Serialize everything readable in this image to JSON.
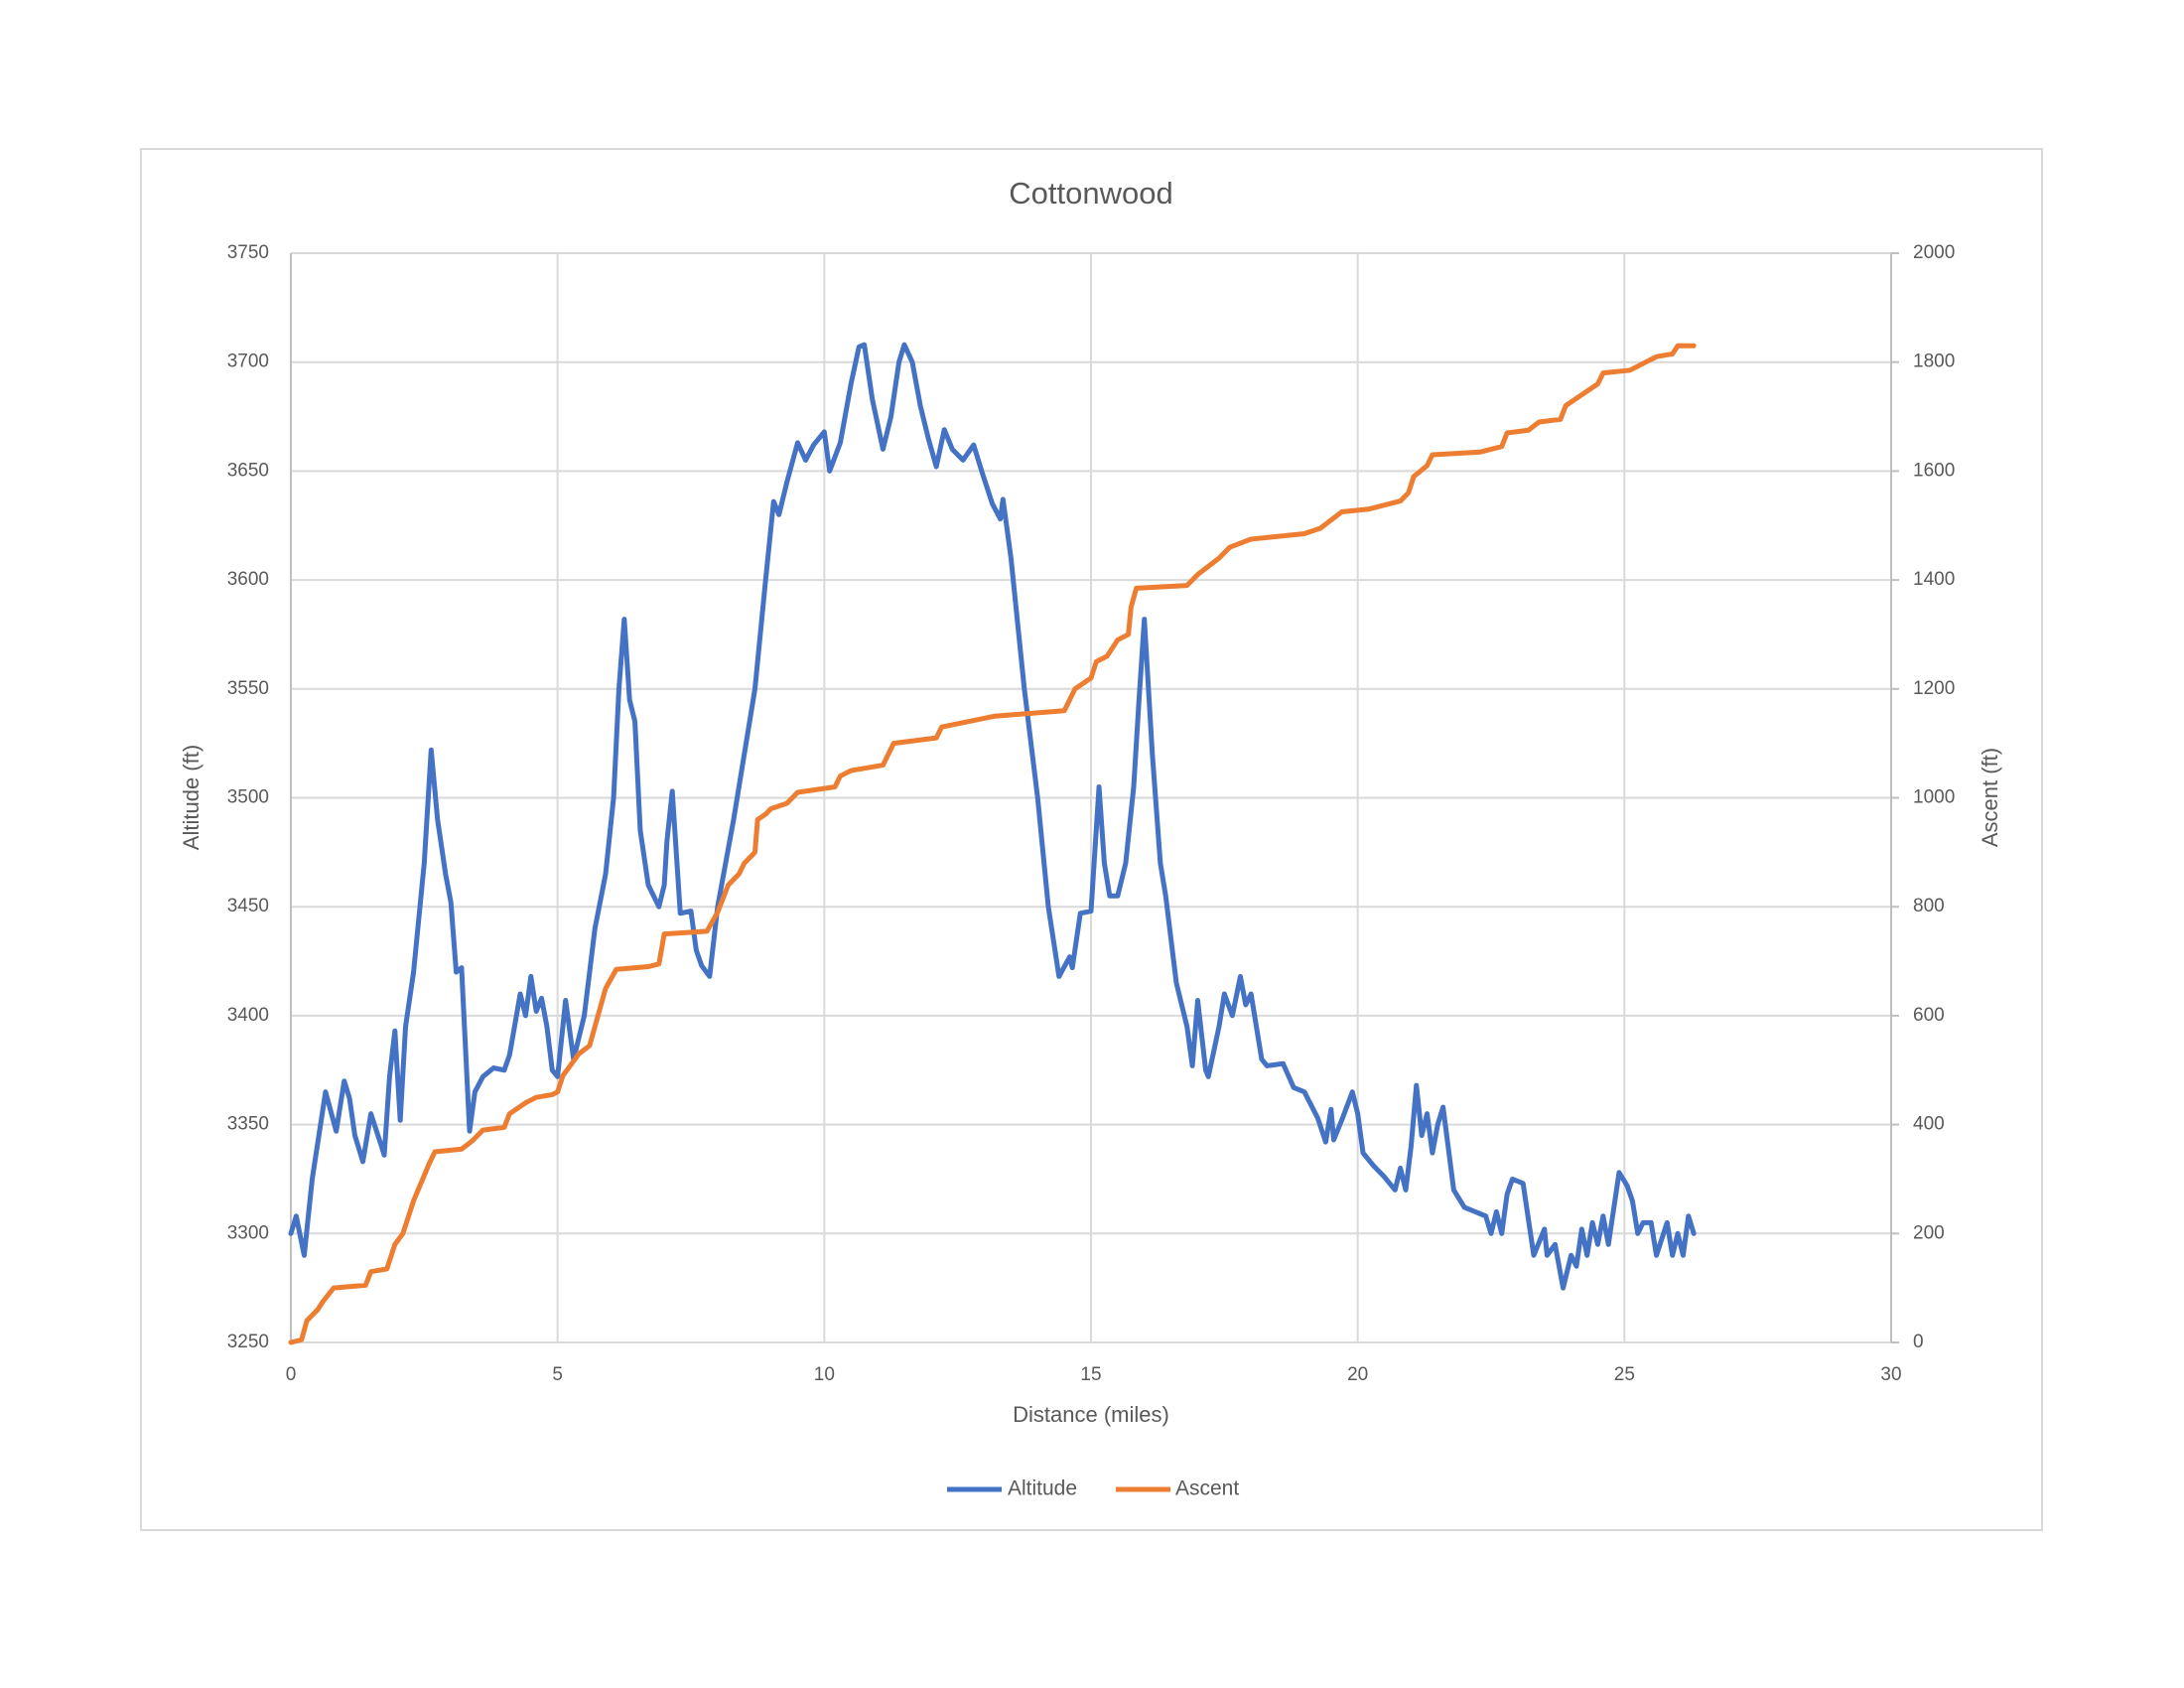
{
  "chart_data": {
    "type": "line",
    "title": "Cottonwood",
    "x_label": "Distance (miles)",
    "y_label": "Altitude (ft)",
    "y2_label": "Ascent (ft)",
    "xlim": [
      0,
      30
    ],
    "xticks": [
      0,
      5,
      10,
      15,
      20,
      25,
      30
    ],
    "ylim": [
      3250,
      3750
    ],
    "yticks": [
      3250,
      3300,
      3350,
      3400,
      3450,
      3500,
      3550,
      3600,
      3650,
      3700,
      3750
    ],
    "y2lim": [
      0,
      2000
    ],
    "y2ticks": [
      0,
      200,
      400,
      600,
      800,
      1000,
      1200,
      1400,
      1600,
      1800,
      2000
    ],
    "grid": true,
    "legend": "bottom",
    "series": [
      {
        "name": "Altitude",
        "color": "#4472c4",
        "x": [
          0,
          0.1,
          0.25,
          0.4,
          0.65,
          0.85,
          1.0,
          1.1,
          1.2,
          1.35,
          1.5,
          1.7,
          1.75,
          1.85,
          1.95,
          2.05,
          2.15,
          2.3,
          2.5,
          2.63,
          2.75,
          2.9,
          3.0,
          3.1,
          3.2,
          3.35,
          3.45,
          3.6,
          3.8,
          4.0,
          4.1,
          4.3,
          4.4,
          4.5,
          4.6,
          4.7,
          4.8,
          4.9,
          5.0,
          5.15,
          5.3,
          5.5,
          5.7,
          5.9,
          6.05,
          6.15,
          6.25,
          6.35,
          6.45,
          6.55,
          6.7,
          6.9,
          7.0,
          7.05,
          7.15,
          7.3,
          7.5,
          7.6,
          7.7,
          7.85,
          8.0,
          8.3,
          8.5,
          8.7,
          8.9,
          9.05,
          9.15,
          9.3,
          9.5,
          9.65,
          9.8,
          10.0,
          10.1,
          10.3,
          10.5,
          10.65,
          10.75,
          10.9,
          11.1,
          11.25,
          11.4,
          11.5,
          11.65,
          11.8,
          11.95,
          12.1,
          12.25,
          12.4,
          12.6,
          12.8,
          12.95,
          13.15,
          13.3,
          13.35,
          13.5,
          13.75,
          14.0,
          14.2,
          14.4,
          14.6,
          14.65,
          14.8,
          15.0,
          15.15,
          15.25,
          15.35,
          15.5,
          15.65,
          15.8,
          15.9,
          16.0,
          16.15,
          16.3,
          16.4,
          16.6,
          16.8,
          16.9,
          17.0,
          17.15,
          17.2,
          17.4,
          17.5,
          17.65,
          17.8,
          17.9,
          18.0,
          18.2,
          18.3,
          18.6,
          18.8,
          19.0,
          19.25,
          19.4,
          19.5,
          19.55,
          19.7,
          19.9,
          20.0,
          20.1,
          20.3,
          20.5,
          20.7,
          20.8,
          20.9,
          21.0,
          21.1,
          21.2,
          21.3,
          21.4,
          21.5,
          21.6,
          21.8,
          22.0,
          22.2,
          22.4,
          22.5,
          22.6,
          22.7,
          22.8,
          22.9,
          23.1,
          23.3,
          23.5,
          23.55,
          23.7,
          23.85,
          24.0,
          24.1,
          24.2,
          24.3,
          24.4,
          24.5,
          24.6,
          24.7,
          24.9,
          25.05,
          25.15,
          25.25,
          25.35,
          25.5,
          25.6,
          25.8,
          25.9,
          26.0,
          26.1,
          26.2,
          26.3
        ],
        "values": [
          3300,
          3308,
          3290,
          3325,
          3365,
          3347,
          3370,
          3362,
          3345,
          3333,
          3355,
          3340,
          3336,
          3372,
          3393,
          3352,
          3395,
          3420,
          3470,
          3522,
          3490,
          3465,
          3452,
          3420,
          3422,
          3347,
          3365,
          3372,
          3376,
          3375,
          3382,
          3410,
          3400,
          3418,
          3402,
          3408,
          3395,
          3375,
          3372,
          3407,
          3380,
          3400,
          3440,
          3465,
          3500,
          3550,
          3582,
          3545,
          3535,
          3485,
          3460,
          3450,
          3460,
          3480,
          3503,
          3447,
          3448,
          3430,
          3423,
          3418,
          3450,
          3490,
          3520,
          3550,
          3600,
          3636,
          3630,
          3645,
          3663,
          3655,
          3662,
          3668,
          3650,
          3663,
          3690,
          3707,
          3708,
          3683,
          3660,
          3675,
          3700,
          3708,
          3700,
          3680,
          3665,
          3652,
          3669,
          3660,
          3655,
          3662,
          3650,
          3635,
          3628,
          3637,
          3610,
          3550,
          3500,
          3450,
          3418,
          3427,
          3422,
          3447,
          3448,
          3505,
          3470,
          3455,
          3455,
          3470,
          3505,
          3545,
          3582,
          3520,
          3470,
          3455,
          3415,
          3395,
          3377,
          3407,
          3375,
          3372,
          3395,
          3410,
          3400,
          3418,
          3405,
          3410,
          3380,
          3377,
          3378,
          3367,
          3365,
          3353,
          3342,
          3357,
          3343,
          3352,
          3365,
          3355,
          3337,
          3331,
          3326,
          3320,
          3330,
          3320,
          3340,
          3368,
          3345,
          3355,
          3337,
          3350,
          3358,
          3320,
          3312,
          3310,
          3308,
          3300,
          3310,
          3300,
          3318,
          3325,
          3323,
          3290,
          3302,
          3290,
          3295,
          3275,
          3290,
          3285,
          3302,
          3290,
          3305,
          3295,
          3308,
          3295,
          3328,
          3322,
          3315,
          3300,
          3305,
          3305,
          3290,
          3305,
          3290,
          3300,
          3290,
          3308,
          3300
        ]
      },
      {
        "name": "Ascent",
        "color": "#ed7d31",
        "axis": "y2",
        "x": [
          0,
          0.2,
          0.3,
          0.5,
          0.6,
          0.8,
          1.4,
          1.5,
          1.8,
          1.95,
          2.1,
          2.3,
          2.6,
          2.7,
          3.2,
          3.4,
          3.6,
          4.0,
          4.1,
          4.4,
          4.6,
          4.9,
          5.0,
          5.1,
          5.4,
          5.6,
          5.7,
          5.9,
          6.1,
          6.7,
          6.9,
          7.0,
          7.8,
          8.0,
          8.2,
          8.4,
          8.5,
          8.7,
          8.75,
          8.9,
          9.0,
          9.3,
          9.5,
          10.2,
          10.3,
          10.5,
          11.1,
          11.3,
          12.1,
          12.2,
          13.2,
          14.5,
          14.7,
          15.0,
          15.1,
          15.3,
          15.5,
          15.7,
          15.75,
          15.85,
          16.8,
          17.0,
          17.4,
          17.6,
          18.0,
          19.0,
          19.3,
          19.7,
          20.2,
          20.4,
          20.8,
          20.95,
          21.05,
          21.3,
          21.4,
          22.3,
          22.7,
          22.8,
          23.2,
          23.4,
          23.8,
          23.9,
          24.2,
          24.5,
          24.6,
          25.1,
          25.3,
          25.6,
          25.9,
          26.0,
          26.3
        ],
        "values": [
          0,
          5,
          40,
          60,
          75,
          100,
          105,
          130,
          135,
          180,
          200,
          260,
          330,
          350,
          355,
          370,
          390,
          395,
          420,
          440,
          450,
          455,
          460,
          490,
          530,
          545,
          580,
          650,
          685,
          690,
          695,
          750,
          755,
          790,
          840,
          860,
          880,
          900,
          960,
          970,
          980,
          990,
          1010,
          1020,
          1040,
          1050,
          1060,
          1100,
          1110,
          1130,
          1150,
          1160,
          1200,
          1220,
          1250,
          1260,
          1290,
          1300,
          1350,
          1385,
          1390,
          1410,
          1440,
          1460,
          1475,
          1485,
          1495,
          1525,
          1530,
          1535,
          1545,
          1560,
          1590,
          1610,
          1630,
          1635,
          1645,
          1670,
          1675,
          1690,
          1695,
          1720,
          1740,
          1760,
          1780,
          1785,
          1795,
          1810,
          1815,
          1830,
          1830
        ]
      }
    ]
  }
}
